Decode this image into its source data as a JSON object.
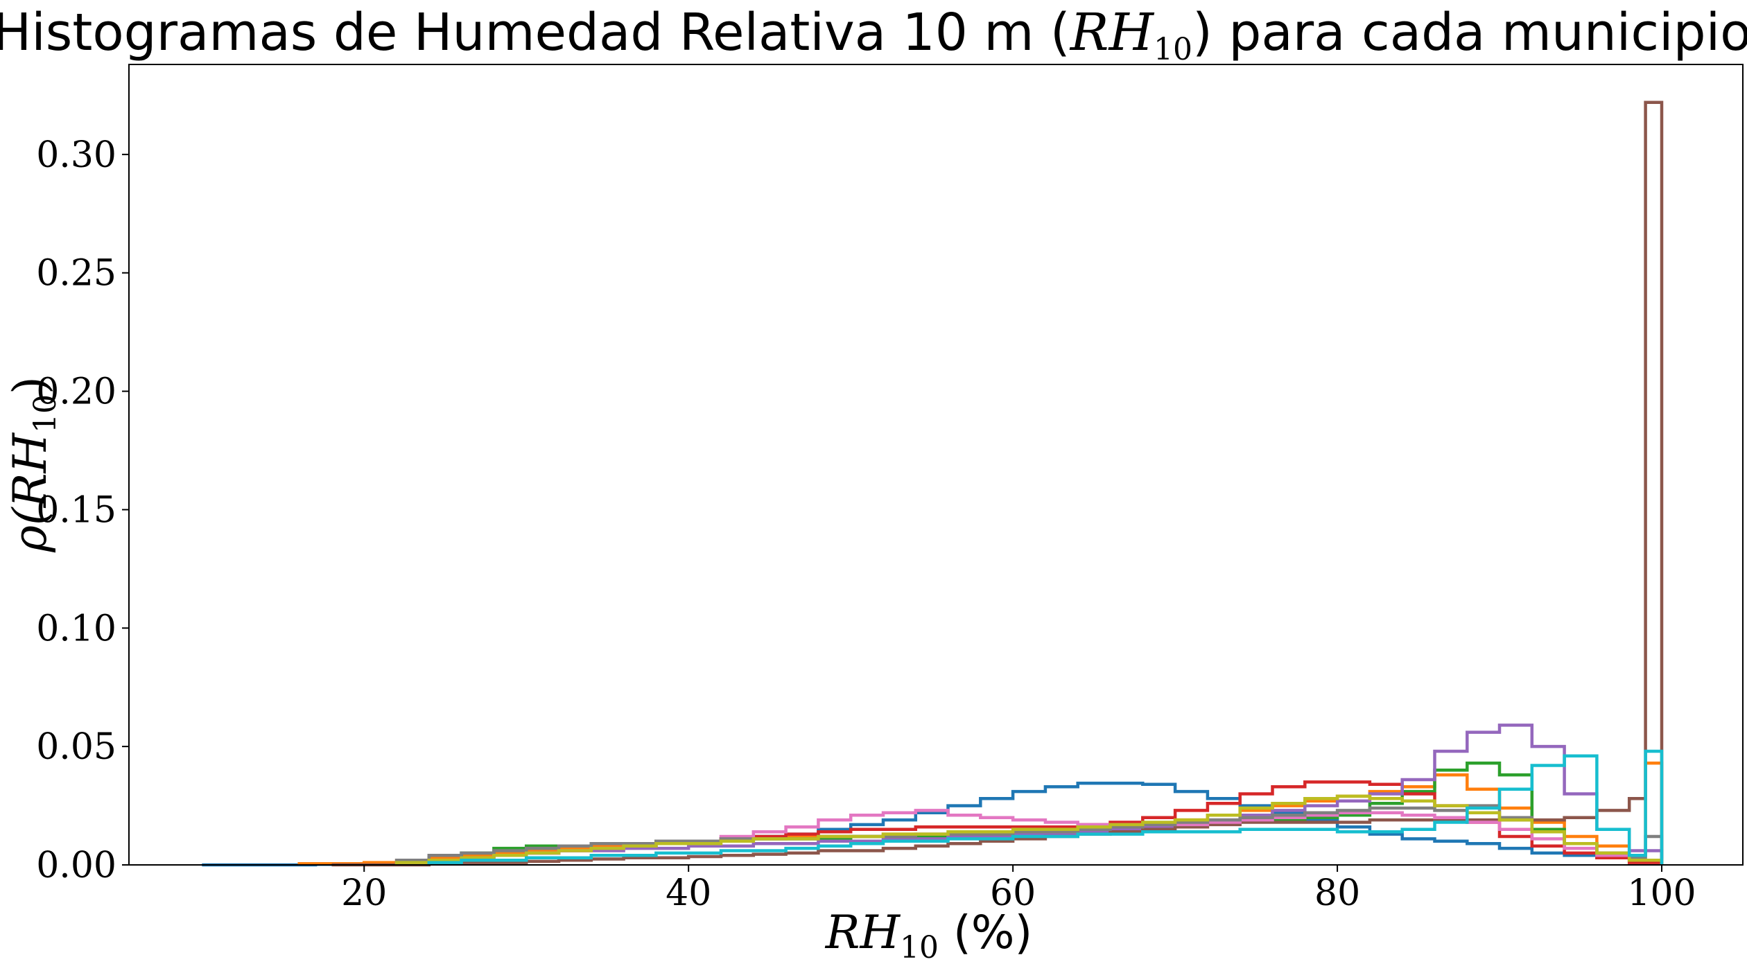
{
  "chart_data": {
    "type": "histogram-step",
    "title": {
      "prefix": "Histogramas de Humedad Relativa 10 m (",
      "var": "RH",
      "sub": "10",
      "suffix": ") para cada municipio"
    },
    "xlabel": {
      "var": "RH",
      "sub": "10",
      "suffix": " (%)"
    },
    "ylabel": {
      "prefix": "ρ(",
      "var": "RH",
      "sub": "10",
      "suffix": ")"
    },
    "xlim": [
      5.5,
      105
    ],
    "ylim": [
      0,
      0.338
    ],
    "xticks": [
      {
        "value": 20,
        "label": "20"
      },
      {
        "value": 40,
        "label": "40"
      },
      {
        "value": 60,
        "label": "60"
      },
      {
        "value": 80,
        "label": "80"
      },
      {
        "value": 100,
        "label": "100"
      }
    ],
    "yticks": [
      {
        "value": 0.0,
        "label": "0.00"
      },
      {
        "value": 0.05,
        "label": "0.05"
      },
      {
        "value": 0.1,
        "label": "0.10"
      },
      {
        "value": 0.15,
        "label": "0.15"
      },
      {
        "value": 0.2,
        "label": "0.20"
      },
      {
        "value": 0.25,
        "label": "0.25"
      },
      {
        "value": 0.3,
        "label": "0.30"
      }
    ],
    "legend": "none",
    "grid": false,
    "series": [
      {
        "color": "#1f77b4",
        "x": [
          10,
          17,
          20,
          22,
          24,
          26,
          28,
          30,
          32,
          34,
          36,
          38,
          40,
          42,
          44,
          46,
          48,
          50,
          52,
          54,
          56,
          58,
          60,
          62,
          64,
          66,
          68,
          70,
          72,
          74,
          76,
          78,
          80,
          82,
          84,
          86,
          88,
          90,
          92,
          94,
          96,
          98,
          100
        ],
        "y": [
          0,
          0.0002,
          0.0005,
          0.001,
          0.002,
          0.003,
          0.004,
          0.005,
          0.006,
          0.007,
          0.008,
          0.009,
          0.01,
          0.011,
          0.012,
          0.013,
          0.015,
          0.017,
          0.019,
          0.022,
          0.025,
          0.028,
          0.031,
          0.033,
          0.0345,
          0.0345,
          0.034,
          0.031,
          0.028,
          0.025,
          0.022,
          0.019,
          0.016,
          0.013,
          0.011,
          0.01,
          0.009,
          0.007,
          0.005,
          0.004,
          0.003,
          0.002
        ]
      },
      {
        "color": "#ff7f0e",
        "x": [
          16,
          20,
          22,
          24,
          26,
          28,
          30,
          32,
          34,
          36,
          38,
          40,
          42,
          44,
          46,
          48,
          50,
          52,
          54,
          56,
          58,
          60,
          62,
          64,
          66,
          68,
          70,
          72,
          74,
          76,
          78,
          80,
          82,
          84,
          86,
          88,
          90,
          92,
          94,
          96,
          98,
          99,
          100
        ],
        "y": [
          0.0005,
          0.001,
          0.002,
          0.003,
          0.004,
          0.005,
          0.006,
          0.007,
          0.008,
          0.009,
          0.01,
          0.01,
          0.011,
          0.011,
          0.012,
          0.012,
          0.012,
          0.013,
          0.013,
          0.013,
          0.013,
          0.014,
          0.014,
          0.015,
          0.016,
          0.017,
          0.019,
          0.021,
          0.023,
          0.025,
          0.027,
          0.029,
          0.031,
          0.033,
          0.038,
          0.032,
          0.024,
          0.018,
          0.012,
          0.008,
          0.004,
          0.043
        ]
      },
      {
        "color": "#2ca02c",
        "x": [
          22,
          24,
          26,
          28,
          30,
          32,
          34,
          36,
          38,
          40,
          42,
          44,
          46,
          48,
          50,
          52,
          54,
          56,
          58,
          60,
          62,
          64,
          66,
          68,
          70,
          72,
          74,
          76,
          78,
          80,
          82,
          84,
          86,
          88,
          90,
          92,
          94,
          96,
          98,
          100
        ],
        "y": [
          0.001,
          0.002,
          0.005,
          0.007,
          0.008,
          0.008,
          0.009,
          0.009,
          0.01,
          0.01,
          0.01,
          0.011,
          0.011,
          0.011,
          0.012,
          0.012,
          0.012,
          0.012,
          0.013,
          0.013,
          0.014,
          0.014,
          0.015,
          0.016,
          0.017,
          0.018,
          0.019,
          0.019,
          0.02,
          0.021,
          0.026,
          0.031,
          0.04,
          0.043,
          0.038,
          0.015,
          0.009,
          0.005,
          0.002
        ]
      },
      {
        "color": "#d62728",
        "x": [
          22,
          24,
          26,
          28,
          30,
          32,
          34,
          36,
          38,
          40,
          42,
          44,
          46,
          48,
          50,
          52,
          54,
          56,
          58,
          60,
          62,
          64,
          66,
          68,
          70,
          72,
          74,
          76,
          78,
          80,
          82,
          84,
          86,
          88,
          90,
          92,
          94,
          96,
          98,
          100
        ],
        "y": [
          0.001,
          0.002,
          0.003,
          0.004,
          0.005,
          0.006,
          0.007,
          0.008,
          0.009,
          0.01,
          0.011,
          0.012,
          0.013,
          0.014,
          0.015,
          0.015,
          0.016,
          0.016,
          0.016,
          0.016,
          0.016,
          0.017,
          0.018,
          0.02,
          0.023,
          0.026,
          0.03,
          0.033,
          0.035,
          0.035,
          0.034,
          0.03,
          0.025,
          0.018,
          0.012,
          0.008,
          0.005,
          0.003,
          0.001
        ]
      },
      {
        "color": "#9467bd",
        "x": [
          22,
          24,
          26,
          28,
          30,
          32,
          34,
          36,
          38,
          40,
          42,
          44,
          46,
          48,
          50,
          52,
          54,
          56,
          58,
          60,
          62,
          64,
          66,
          68,
          70,
          72,
          74,
          76,
          78,
          80,
          82,
          84,
          86,
          88,
          90,
          92,
          94,
          96,
          98,
          100
        ],
        "y": [
          0.001,
          0.002,
          0.003,
          0.004,
          0.005,
          0.006,
          0.006,
          0.007,
          0.007,
          0.008,
          0.008,
          0.009,
          0.009,
          0.01,
          0.01,
          0.011,
          0.011,
          0.012,
          0.012,
          0.013,
          0.013,
          0.014,
          0.015,
          0.016,
          0.017,
          0.019,
          0.021,
          0.023,
          0.025,
          0.027,
          0.03,
          0.036,
          0.048,
          0.056,
          0.059,
          0.05,
          0.03,
          0.015,
          0.006,
          0.001
        ]
      },
      {
        "color": "#8c564b",
        "x": [
          18,
          20,
          22,
          24,
          26,
          28,
          30,
          32,
          34,
          36,
          38,
          40,
          42,
          44,
          46,
          48,
          50,
          52,
          54,
          56,
          58,
          60,
          62,
          64,
          66,
          68,
          70,
          72,
          74,
          76,
          78,
          80,
          82,
          84,
          86,
          88,
          90,
          92,
          94,
          96,
          98,
          99,
          100
        ],
        "y": [
          0,
          0,
          0,
          0.0005,
          0.001,
          0.001,
          0.0015,
          0.002,
          0.0025,
          0.003,
          0.003,
          0.0035,
          0.004,
          0.0045,
          0.005,
          0.006,
          0.006,
          0.007,
          0.008,
          0.009,
          0.01,
          0.011,
          0.012,
          0.013,
          0.014,
          0.015,
          0.016,
          0.017,
          0.018,
          0.018,
          0.018,
          0.018,
          0.019,
          0.019,
          0.019,
          0.019,
          0.019,
          0.019,
          0.02,
          0.023,
          0.028,
          0.322
        ]
      },
      {
        "color": "#e377c2",
        "x": [
          22,
          24,
          26,
          28,
          30,
          32,
          34,
          36,
          38,
          40,
          42,
          44,
          46,
          48,
          50,
          52,
          54,
          56,
          58,
          60,
          62,
          64,
          66,
          68,
          70,
          72,
          74,
          76,
          78,
          80,
          82,
          84,
          86,
          88,
          90,
          92,
          94,
          96,
          98,
          100
        ],
        "y": [
          0.001,
          0.002,
          0.003,
          0.004,
          0.005,
          0.006,
          0.007,
          0.008,
          0.009,
          0.01,
          0.012,
          0.014,
          0.016,
          0.019,
          0.021,
          0.022,
          0.023,
          0.021,
          0.02,
          0.019,
          0.018,
          0.017,
          0.017,
          0.017,
          0.017,
          0.018,
          0.019,
          0.02,
          0.021,
          0.022,
          0.022,
          0.021,
          0.02,
          0.018,
          0.015,
          0.011,
          0.007,
          0.004,
          0.002
        ]
      },
      {
        "color": "#7f7f7f",
        "x": [
          22,
          24,
          26,
          28,
          30,
          32,
          34,
          36,
          38,
          40,
          42,
          44,
          46,
          48,
          50,
          52,
          54,
          56,
          58,
          60,
          62,
          64,
          66,
          68,
          70,
          72,
          74,
          76,
          78,
          80,
          82,
          84,
          86,
          88,
          90,
          92,
          94,
          96,
          98,
          99,
          100
        ],
        "y": [
          0.002,
          0.004,
          0.005,
          0.006,
          0.007,
          0.008,
          0.009,
          0.009,
          0.01,
          0.01,
          0.011,
          0.011,
          0.011,
          0.012,
          0.012,
          0.012,
          0.013,
          0.013,
          0.013,
          0.014,
          0.014,
          0.015,
          0.016,
          0.017,
          0.018,
          0.019,
          0.02,
          0.021,
          0.022,
          0.023,
          0.024,
          0.024,
          0.023,
          0.025,
          0.02,
          0.014,
          0.009,
          0.005,
          0.003,
          0.012
        ]
      },
      {
        "color": "#bcbd22",
        "x": [
          22,
          24,
          26,
          28,
          30,
          32,
          34,
          36,
          38,
          40,
          42,
          44,
          46,
          48,
          50,
          52,
          54,
          56,
          58,
          60,
          62,
          64,
          66,
          68,
          70,
          72,
          74,
          76,
          78,
          80,
          82,
          84,
          86,
          88,
          90,
          92,
          94,
          96,
          98,
          100
        ],
        "y": [
          0.001,
          0.002,
          0.003,
          0.004,
          0.005,
          0.006,
          0.007,
          0.008,
          0.009,
          0.009,
          0.01,
          0.011,
          0.011,
          0.012,
          0.012,
          0.013,
          0.013,
          0.014,
          0.014,
          0.015,
          0.015,
          0.016,
          0.017,
          0.018,
          0.019,
          0.021,
          0.024,
          0.026,
          0.028,
          0.029,
          0.028,
          0.027,
          0.025,
          0.022,
          0.019,
          0.014,
          0.009,
          0.005,
          0.002
        ]
      },
      {
        "color": "#17becf",
        "x": [
          24,
          26,
          28,
          30,
          32,
          34,
          36,
          38,
          40,
          42,
          44,
          46,
          48,
          50,
          52,
          54,
          56,
          58,
          60,
          62,
          64,
          66,
          68,
          70,
          72,
          74,
          76,
          78,
          80,
          82,
          84,
          86,
          88,
          90,
          92,
          94,
          96,
          98,
          99,
          100
        ],
        "y": [
          0.001,
          0.002,
          0.002,
          0.003,
          0.003,
          0.004,
          0.004,
          0.005,
          0.005,
          0.006,
          0.006,
          0.007,
          0.008,
          0.009,
          0.01,
          0.01,
          0.011,
          0.011,
          0.012,
          0.012,
          0.013,
          0.013,
          0.014,
          0.014,
          0.014,
          0.015,
          0.015,
          0.015,
          0.014,
          0.014,
          0.015,
          0.018,
          0.024,
          0.032,
          0.042,
          0.046,
          0.015,
          0.004,
          0.048
        ]
      }
    ]
  }
}
